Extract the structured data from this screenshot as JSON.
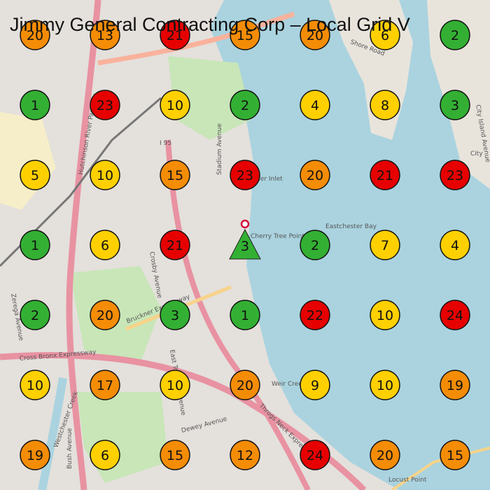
{
  "title": "Jimmy General Contracting Corp – Local Grid V",
  "grid": [
    [
      {
        "value": 20,
        "color": "#f48c06"
      },
      {
        "value": 13,
        "color": "#f48c06"
      },
      {
        "value": 21,
        "color": "#e60000"
      },
      {
        "value": 15,
        "color": "#f48c06"
      },
      {
        "value": 20,
        "color": "#f48c06"
      },
      {
        "value": 6,
        "color": "#ffd000"
      },
      {
        "value": 2,
        "color": "#33b033"
      }
    ],
    [
      {
        "value": 1,
        "color": "#33b033"
      },
      {
        "value": 23,
        "color": "#e60000"
      },
      {
        "value": 10,
        "color": "#ffd000"
      },
      {
        "value": 2,
        "color": "#33b033"
      },
      {
        "value": 4,
        "color": "#ffd000"
      },
      {
        "value": 8,
        "color": "#ffd000"
      },
      {
        "value": 3,
        "color": "#33b033"
      }
    ],
    [
      {
        "value": 5,
        "color": "#ffd000"
      },
      {
        "value": 10,
        "color": "#ffd000"
      },
      {
        "value": 15,
        "color": "#f48c06"
      },
      {
        "value": 23,
        "color": "#e60000"
      },
      {
        "value": 20,
        "color": "#f48c06"
      },
      {
        "value": 21,
        "color": "#e60000"
      },
      {
        "value": 23,
        "color": "#e60000"
      }
    ],
    [
      {
        "value": 1,
        "color": "#33b033"
      },
      {
        "value": 6,
        "color": "#ffd000"
      },
      {
        "value": 21,
        "color": "#e60000"
      },
      {
        "value": 3,
        "color": "#33b033",
        "center": true
      },
      {
        "value": 2,
        "color": "#33b033"
      },
      {
        "value": 7,
        "color": "#ffd000"
      },
      {
        "value": 4,
        "color": "#ffd000"
      }
    ],
    [
      {
        "value": 2,
        "color": "#33b033"
      },
      {
        "value": 20,
        "color": "#f48c06"
      },
      {
        "value": 3,
        "color": "#33b033"
      },
      {
        "value": 1,
        "color": "#33b033"
      },
      {
        "value": 22,
        "color": "#e60000"
      },
      {
        "value": 10,
        "color": "#ffd000"
      },
      {
        "value": 24,
        "color": "#e60000"
      }
    ],
    [
      {
        "value": 10,
        "color": "#ffd000"
      },
      {
        "value": 17,
        "color": "#f48c06"
      },
      {
        "value": 10,
        "color": "#ffd000"
      },
      {
        "value": 20,
        "color": "#f48c06"
      },
      {
        "value": 9,
        "color": "#ffd000"
      },
      {
        "value": 10,
        "color": "#ffd000"
      },
      {
        "value": 19,
        "color": "#f48c06"
      }
    ],
    [
      {
        "value": 19,
        "color": "#f48c06"
      },
      {
        "value": 6,
        "color": "#ffd000"
      },
      {
        "value": 15,
        "color": "#f48c06"
      },
      {
        "value": 12,
        "color": "#f48c06"
      },
      {
        "value": 24,
        "color": "#e60000"
      },
      {
        "value": 20,
        "color": "#f48c06"
      },
      {
        "value": 15,
        "color": "#f48c06"
      }
    ]
  ],
  "map_labels": [
    "Eastchester Bay",
    "Cherry Tree Point",
    "Weir Creek",
    "Locust Point",
    "Bruckner Expressway",
    "Cross Bronx Expressway",
    "Hutchinson River Parkway",
    "Stadium Avenue",
    "Crosby Avenue",
    "East Tremont Avenue",
    "Westchester Creek",
    "City Island Avenue",
    "I 95",
    "Shore Road",
    "Palmer Inlet",
    "Throgs Neck Expressway",
    "Bush Avenue",
    "Dewey Avenue",
    "Zerega Avenue",
    "City"
  ]
}
